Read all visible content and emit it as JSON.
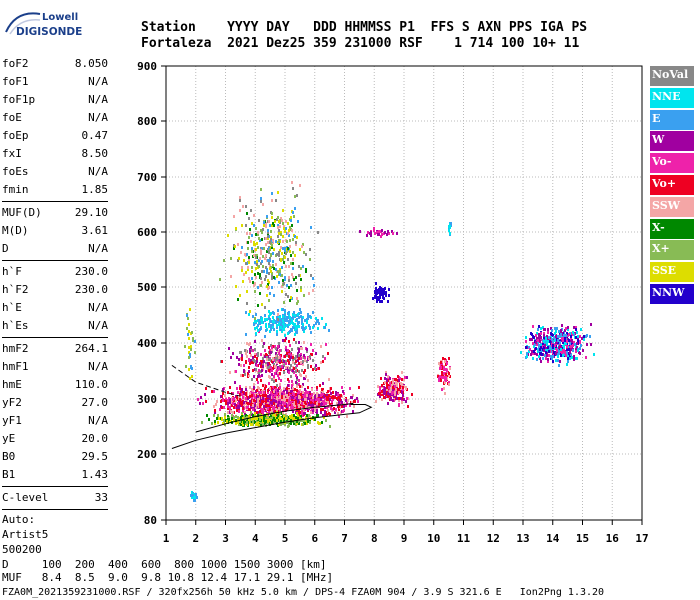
{
  "logo": {
    "line1": "Lowell",
    "line2": "DIGISONDE"
  },
  "header": {
    "line1": "Station    YYYY DAY   DDD HHMMSS P1  FFS S AXN PPS IGA PS",
    "line2": "Fortaleza  2021 Dez25 359 231000 RSF    1 714 100 10+ 11"
  },
  "params": [
    {
      "k": "foF2",
      "v": "8.050"
    },
    {
      "k": "foF1",
      "v": "N/A"
    },
    {
      "k": "foF1p",
      "v": "N/A"
    },
    {
      "k": "foE",
      "v": "N/A"
    },
    {
      "k": "foEp",
      "v": "0.47"
    },
    {
      "k": "fxI",
      "v": "8.50"
    },
    {
      "k": "foEs",
      "v": "N/A"
    },
    {
      "k": "fmin",
      "v": "1.85"
    },
    {
      "sep": true
    },
    {
      "k": "MUF(D)",
      "v": "29.10"
    },
    {
      "k": "M(D)",
      "v": "3.61"
    },
    {
      "k": "D",
      "v": "N/A"
    },
    {
      "sep": true
    },
    {
      "k": "h`F",
      "v": "230.0"
    },
    {
      "k": "h`F2",
      "v": "230.0"
    },
    {
      "k": "h`E",
      "v": "N/A"
    },
    {
      "k": "h`Es",
      "v": "N/A"
    },
    {
      "sep": true
    },
    {
      "k": "hmF2",
      "v": "264.1"
    },
    {
      "k": "hmF1",
      "v": "N/A"
    },
    {
      "k": "hmE",
      "v": "110.0"
    },
    {
      "k": "yF2",
      "v": "27.0"
    },
    {
      "k": "yF1",
      "v": "N/A"
    },
    {
      "k": "yE",
      "v": "20.0"
    },
    {
      "k": "B0",
      "v": "29.5"
    },
    {
      "k": "B1",
      "v": "1.43"
    },
    {
      "sep": true
    },
    {
      "k": "C-level",
      "v": "33"
    },
    {
      "sep": true
    },
    {
      "text": "Auto:"
    },
    {
      "text": "Artist5"
    },
    {
      "text": "500200"
    }
  ],
  "bottom": {
    "line1": "D     100  200  400  600  800 1000 1500 3000 [km]",
    "line2": "MUF   8.4  8.5  9.0  9.8 10.8 12.4 17.1 29.1 [MHz]"
  },
  "footer": "FZA0M_2021359231000.RSF / 320fx256h 50 kHz 5.0 km / DPS-4 FZA0M 904 / 3.9 S 321.6 E   Ion2Png 1.3.20",
  "legend": [
    {
      "name": "NoVal",
      "color": "#888888"
    },
    {
      "name": "NNE",
      "color": "#00e5ee"
    },
    {
      "name": "E",
      "color": "#3aa0f0"
    },
    {
      "name": "W",
      "color": "#a000a0"
    },
    {
      "name": "Vo-",
      "color": "#ee22aa"
    },
    {
      "name": "Vo+",
      "color": "#ee0022"
    },
    {
      "name": "SSW",
      "color": "#f4a6a6"
    },
    {
      "name": "X-",
      "color": "#008800"
    },
    {
      "name": "X+",
      "color": "#88bb55"
    },
    {
      "name": "SSE",
      "color": "#dddd00"
    },
    {
      "name": "NNW",
      "color": "#2200cc"
    }
  ],
  "chart_data": {
    "type": "scatter",
    "xlim": [
      1,
      17
    ],
    "ylim": [
      80,
      900
    ],
    "x_ticks": [
      1,
      2,
      3,
      4,
      5,
      6,
      7,
      8,
      9,
      10,
      11,
      12,
      13,
      14,
      15,
      16,
      17
    ],
    "y_ticks": [
      80,
      200,
      300,
      400,
      500,
      600,
      700,
      800,
      900
    ],
    "grid": true,
    "clusters": [
      {
        "cx": 4.9,
        "cy": 300,
        "w": 6.2,
        "h": 70,
        "n": 1300,
        "series": [
          "Vo+",
          "Vo-",
          "SSW",
          "W"
        ]
      },
      {
        "cx": 4.4,
        "cy": 265,
        "w": 4.8,
        "h": 30,
        "n": 500,
        "series": [
          "SSE",
          "X+",
          "X-"
        ]
      },
      {
        "cx": 4.7,
        "cy": 370,
        "w": 4.0,
        "h": 110,
        "n": 420,
        "series": [
          "Vo-",
          "Vo+",
          "W",
          "SSW",
          "NoVal"
        ]
      },
      {
        "cx": 5.0,
        "cy": 440,
        "w": 3.5,
        "h": 60,
        "n": 260,
        "series": [
          "E",
          "NNE"
        ]
      },
      {
        "cx": 4.5,
        "cy": 560,
        "w": 3.8,
        "h": 280,
        "n": 420,
        "series": [
          "SSE",
          "X+",
          "NoVal",
          "SSW",
          "E",
          "X-"
        ]
      },
      {
        "cx": 1.8,
        "cy": 400,
        "w": 0.5,
        "h": 200,
        "n": 30,
        "series": [
          "X+",
          "E",
          "SSE"
        ]
      },
      {
        "cx": 8.2,
        "cy": 490,
        "w": 0.7,
        "h": 45,
        "n": 60,
        "series": [
          "NNW"
        ]
      },
      {
        "cx": 8.1,
        "cy": 602,
        "w": 1.6,
        "h": 20,
        "n": 30,
        "series": [
          "W",
          "Vo-"
        ]
      },
      {
        "cx": 8.6,
        "cy": 320,
        "w": 1.5,
        "h": 70,
        "n": 230,
        "series": [
          "Vo+",
          "Vo-",
          "W",
          "SSW"
        ]
      },
      {
        "cx": 10.3,
        "cy": 350,
        "w": 0.6,
        "h": 80,
        "n": 80,
        "series": [
          "Vo+",
          "SSW",
          "Vo-"
        ]
      },
      {
        "cx": 10.5,
        "cy": 610,
        "w": 0.2,
        "h": 50,
        "n": 10,
        "series": [
          "E",
          "NNE"
        ]
      },
      {
        "cx": 14.1,
        "cy": 400,
        "w": 2.8,
        "h": 90,
        "n": 460,
        "series": [
          "W",
          "NNW",
          "Vo-",
          "E",
          "NNE"
        ]
      },
      {
        "cx": 1.9,
        "cy": 125,
        "w": 0.3,
        "h": 25,
        "n": 20,
        "series": [
          "NNE",
          "E"
        ]
      }
    ],
    "curves": [
      {
        "name": "profile",
        "style": "solid",
        "points": [
          [
            1.2,
            210
          ],
          [
            2,
            225
          ],
          [
            3,
            238
          ],
          [
            4,
            248
          ],
          [
            5,
            258
          ],
          [
            6,
            266
          ],
          [
            7,
            272
          ],
          [
            7.5,
            275
          ],
          [
            7.9,
            285
          ],
          [
            7.7,
            290
          ],
          [
            7.2,
            290
          ]
        ]
      },
      {
        "name": "trace",
        "style": "solid",
        "points": [
          [
            2,
            240
          ],
          [
            3,
            255
          ],
          [
            4,
            268
          ],
          [
            5,
            278
          ],
          [
            6,
            285
          ],
          [
            7,
            290
          ],
          [
            7.3,
            292
          ]
        ]
      },
      {
        "name": "extrapolation",
        "style": "dashed",
        "points": [
          [
            1.2,
            360
          ],
          [
            2,
            330
          ],
          [
            3,
            312
          ],
          [
            3.5,
            305
          ]
        ]
      }
    ]
  }
}
